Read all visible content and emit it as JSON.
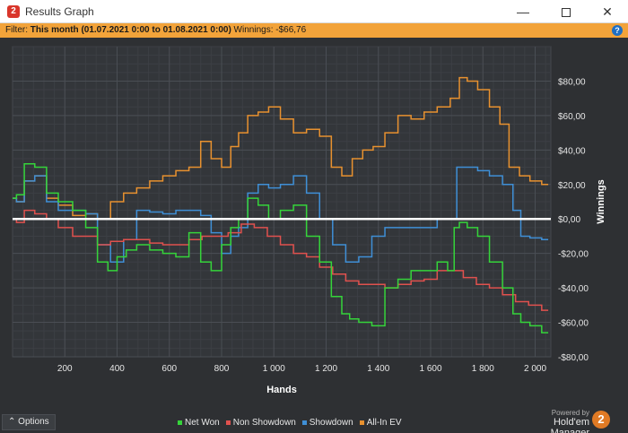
{
  "window": {
    "icon_label": "2",
    "title": "Results Graph",
    "min_glyph": "—",
    "close_glyph": "✕"
  },
  "filter": {
    "prefix": "Filter: ",
    "range": "This month (01.07.2021 0:00 to 01.08.2021 0:00)",
    "winnings_label": " Winnings: ",
    "winnings_value": "-$66,76",
    "help_glyph": "?"
  },
  "chart_data": {
    "type": "line",
    "xlabel": "Hands",
    "ylabel": "Winnings",
    "xlim": [
      0,
      2060
    ],
    "ylim": [
      -80,
      100
    ],
    "x_ticks": [
      200,
      400,
      600,
      800,
      1000,
      1200,
      1400,
      1600,
      1800,
      2000
    ],
    "x_tick_labels": [
      "200",
      "400",
      "600",
      "800",
      "1 000",
      "1 200",
      "1 400",
      "1 600",
      "1 800",
      "2 000"
    ],
    "y_ticks": [
      80,
      60,
      40,
      20,
      0,
      -20,
      -40,
      -60,
      -80
    ],
    "y_tick_labels": [
      "$80,00",
      "$60,00",
      "$40,00",
      "$20,00",
      "$0,00",
      "-$20,00",
      "-$40,00",
      "-$60,00",
      "-$80,00"
    ],
    "grid": true,
    "colors": {
      "net_won": "#35d43a",
      "non_showdown": "#e0514e",
      "showdown": "#3f8fd6",
      "all_in_ev": "#e8912f",
      "zero_line": "#ffffff"
    },
    "series": [
      {
        "name": "Net Won",
        "x": [
          0,
          30,
          60,
          110,
          150,
          200,
          260,
          300,
          350,
          380,
          420,
          450,
          500,
          550,
          600,
          650,
          700,
          740,
          780,
          820,
          850,
          880,
          920,
          960,
          1000,
          1050,
          1100,
          1150,
          1200,
          1240,
          1280,
          1300,
          1350,
          1400,
          1450,
          1500,
          1550,
          1600,
          1650,
          1680,
          1700,
          1720,
          1760,
          1800,
          1850,
          1900,
          1930,
          1960,
          2000,
          2050
        ],
        "y": [
          12,
          14,
          32,
          30,
          15,
          10,
          5,
          -5,
          -25,
          -30,
          -22,
          -18,
          -15,
          -18,
          -20,
          -22,
          -8,
          -25,
          -30,
          -15,
          -5,
          0,
          12,
          8,
          0,
          5,
          8,
          -10,
          -25,
          -45,
          -55,
          -58,
          -60,
          -62,
          -40,
          -35,
          -30,
          -30,
          -25,
          -30,
          -5,
          -2,
          -5,
          -10,
          -25,
          -40,
          -55,
          -60,
          -62,
          -66
        ]
      },
      {
        "name": "Non Showdown",
        "x": [
          0,
          30,
          60,
          110,
          150,
          200,
          260,
          300,
          350,
          400,
          450,
          500,
          550,
          600,
          650,
          700,
          750,
          800,
          850,
          900,
          950,
          1000,
          1050,
          1100,
          1150,
          1200,
          1250,
          1300,
          1350,
          1400,
          1450,
          1500,
          1550,
          1600,
          1650,
          1700,
          1750,
          1800,
          1850,
          1900,
          1950,
          2000,
          2050
        ],
        "y": [
          0,
          -2,
          5,
          3,
          0,
          -5,
          -10,
          -10,
          -15,
          -13,
          -12,
          -12,
          -14,
          -15,
          -15,
          -12,
          -10,
          -10,
          -8,
          -3,
          -5,
          -10,
          -15,
          -20,
          -22,
          -28,
          -32,
          -36,
          -38,
          -38,
          -40,
          -38,
          -36,
          -35,
          -30,
          -30,
          -34,
          -38,
          -40,
          -44,
          -48,
          -50,
          -53
        ]
      },
      {
        "name": "Showdown",
        "x": [
          0,
          30,
          60,
          110,
          150,
          200,
          260,
          300,
          350,
          400,
          450,
          500,
          550,
          600,
          650,
          700,
          740,
          780,
          820,
          850,
          880,
          920,
          960,
          1000,
          1050,
          1100,
          1150,
          1200,
          1250,
          1300,
          1350,
          1400,
          1450,
          1500,
          1550,
          1600,
          1650,
          1680,
          1720,
          1760,
          1800,
          1850,
          1900,
          1930,
          1960,
          2000,
          2050
        ],
        "y": [
          12,
          10,
          22,
          25,
          10,
          5,
          5,
          3,
          -15,
          -25,
          -12,
          5,
          4,
          3,
          5,
          5,
          2,
          -8,
          -20,
          -10,
          -5,
          15,
          20,
          18,
          20,
          25,
          15,
          0,
          -15,
          -25,
          -22,
          -10,
          -5,
          -5,
          -5,
          -5,
          0,
          0,
          30,
          30,
          28,
          25,
          20,
          5,
          -10,
          -11,
          -12
        ]
      },
      {
        "name": "All-In EV",
        "x": [
          0,
          30,
          60,
          110,
          150,
          200,
          260,
          300,
          350,
          400,
          450,
          500,
          550,
          600,
          650,
          700,
          740,
          780,
          820,
          850,
          880,
          920,
          960,
          1000,
          1050,
          1100,
          1150,
          1200,
          1240,
          1280,
          1320,
          1360,
          1400,
          1450,
          1500,
          1550,
          1600,
          1650,
          1700,
          1720,
          1760,
          1800,
          1850,
          1880,
          1920,
          1960,
          2000,
          2050
        ],
        "y": [
          12,
          10,
          22,
          25,
          12,
          8,
          2,
          3,
          0,
          10,
          15,
          18,
          22,
          25,
          28,
          30,
          45,
          35,
          30,
          42,
          50,
          60,
          62,
          65,
          58,
          50,
          52,
          48,
          30,
          25,
          35,
          40,
          42,
          50,
          60,
          58,
          62,
          65,
          70,
          82,
          80,
          75,
          65,
          55,
          30,
          25,
          22,
          20
        ]
      }
    ],
    "zero_line": true
  },
  "footer": {
    "options_label": "Options",
    "options_glyph": "⌃",
    "legend": [
      {
        "label": "Net Won",
        "color": "#35d43a"
      },
      {
        "label": "Non Showdown",
        "color": "#e0514e"
      },
      {
        "label": "Showdown",
        "color": "#3f8fd6"
      },
      {
        "label": "All-In EV",
        "color": "#e8912f"
      }
    ],
    "powered_by": "Powered by",
    "brand_name": "Hold'em Manager",
    "brand_logo": "2"
  }
}
